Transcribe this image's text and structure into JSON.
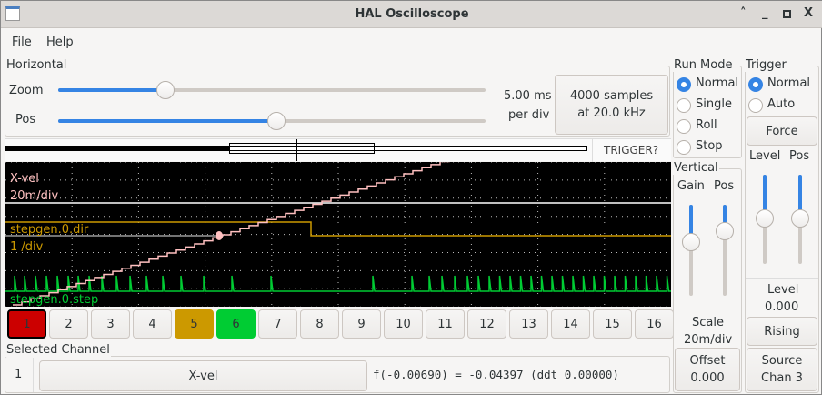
{
  "window": {
    "title": "HAL Oscilloscope"
  },
  "menu": [
    "File",
    "Help"
  ],
  "horizontal": {
    "label": "Horizontal",
    "zoom_label": "Zoom",
    "pos_label": "Pos",
    "zoom_value": 0.23,
    "pos_value": 0.44,
    "time_per_div": "5.00 ms",
    "per_div": "per div",
    "samples_line1": "4000 samples",
    "samples_line2": "at 20.0 kHz",
    "trigger_status": "TRIGGER?"
  },
  "scope": {
    "colors": {
      "ch1": "#ffc0c0",
      "ch5": "#cc9900",
      "ch6": "#00cc33"
    },
    "traces": [
      {
        "name": "X-vel",
        "scale": "20m/div"
      },
      {
        "name": "stepgen.0.dir",
        "scale": "1 /div"
      },
      {
        "name": "stepgen.0.step"
      }
    ]
  },
  "channels": [
    {
      "n": "1",
      "color": "#cc0000",
      "selected": true
    },
    {
      "n": "2"
    },
    {
      "n": "3"
    },
    {
      "n": "4"
    },
    {
      "n": "5",
      "color": "#cc9900"
    },
    {
      "n": "6",
      "color": "#00cc33"
    },
    {
      "n": "7"
    },
    {
      "n": "8"
    },
    {
      "n": "9"
    },
    {
      "n": "10"
    },
    {
      "n": "11"
    },
    {
      "n": "12"
    },
    {
      "n": "13"
    },
    {
      "n": "14"
    },
    {
      "n": "15"
    },
    {
      "n": "16"
    }
  ],
  "selected_channel": {
    "label": "Selected Channel",
    "number": "1",
    "name": "X-vel",
    "readout": "f(-0.00690) = -0.04397 (ddt  0.00000)"
  },
  "run_mode": {
    "label": "Run Mode",
    "options": [
      "Normal",
      "Single",
      "Roll",
      "Stop"
    ],
    "selected": "Normal"
  },
  "vertical": {
    "label": "Vertical",
    "gain_label": "Gain",
    "pos_label": "Pos",
    "gain_value": 0.65,
    "pos_value": 0.65,
    "scale_label": "Scale",
    "scale_value": "20m/div",
    "offset_label": "Offset",
    "offset_value": "0.000"
  },
  "trigger": {
    "label": "Trigger",
    "options": [
      "Normal",
      "Auto"
    ],
    "selected": "Normal",
    "force_label": "Force",
    "level_label": "Level",
    "pos_label": "Pos",
    "level_value_slider": 0.5,
    "pos_value_slider": 0.5,
    "level_text_label": "Level",
    "level_value": "0.000",
    "edge": "Rising",
    "source_line1": "Source",
    "source_line2": "Chan  3"
  }
}
